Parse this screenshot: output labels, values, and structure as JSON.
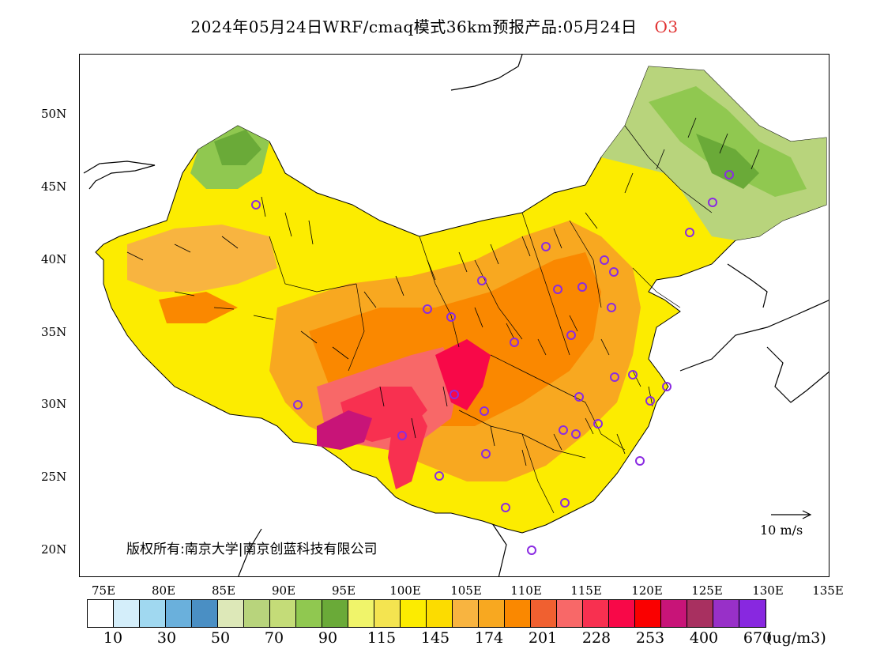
{
  "title": {
    "main": "2024年05月24日WRF/cmaq模式36km预报产品:05月24日",
    "species": "O3"
  },
  "axes": {
    "lat_labels": [
      "50N",
      "45N",
      "40N",
      "35N",
      "30N",
      "25N",
      "20N"
    ],
    "lon_labels": [
      "75E",
      "80E",
      "85E",
      "90E",
      "95E",
      "100E",
      "105E",
      "110E",
      "115E",
      "120E",
      "125E",
      "130E",
      "135E"
    ]
  },
  "copyright": "版权所有:南京大学|南京创蓝科技有限公司",
  "wind_scale": {
    "label": "10 m/s"
  },
  "colorbar": {
    "colors": [
      "#ffffff",
      "#d4eefa",
      "#a0d8f0",
      "#6ab0dc",
      "#4a8fc4",
      "#dde8b8",
      "#b8d47c",
      "#c4dc78",
      "#90c850",
      "#6aaa38",
      "#f0f46a",
      "#f4e450",
      "#fcec00",
      "#fcdc00",
      "#f8b440",
      "#f8a820",
      "#fa8800",
      "#f06030",
      "#f86868",
      "#f83050",
      "#f80848",
      "#fa0000",
      "#c81478",
      "#a83060",
      "#9830c8",
      "#8828e0"
    ],
    "labels": [
      "10",
      "30",
      "50",
      "70",
      "90",
      "115",
      "145",
      "174",
      "201",
      "228",
      "253",
      "400",
      "670"
    ],
    "units": "(ug/m3)"
  },
  "map": {
    "shading": "O3 concentration over China",
    "layers": [
      "province-boundaries",
      "coastlines",
      "wind-vectors",
      "city-markers"
    ]
  }
}
